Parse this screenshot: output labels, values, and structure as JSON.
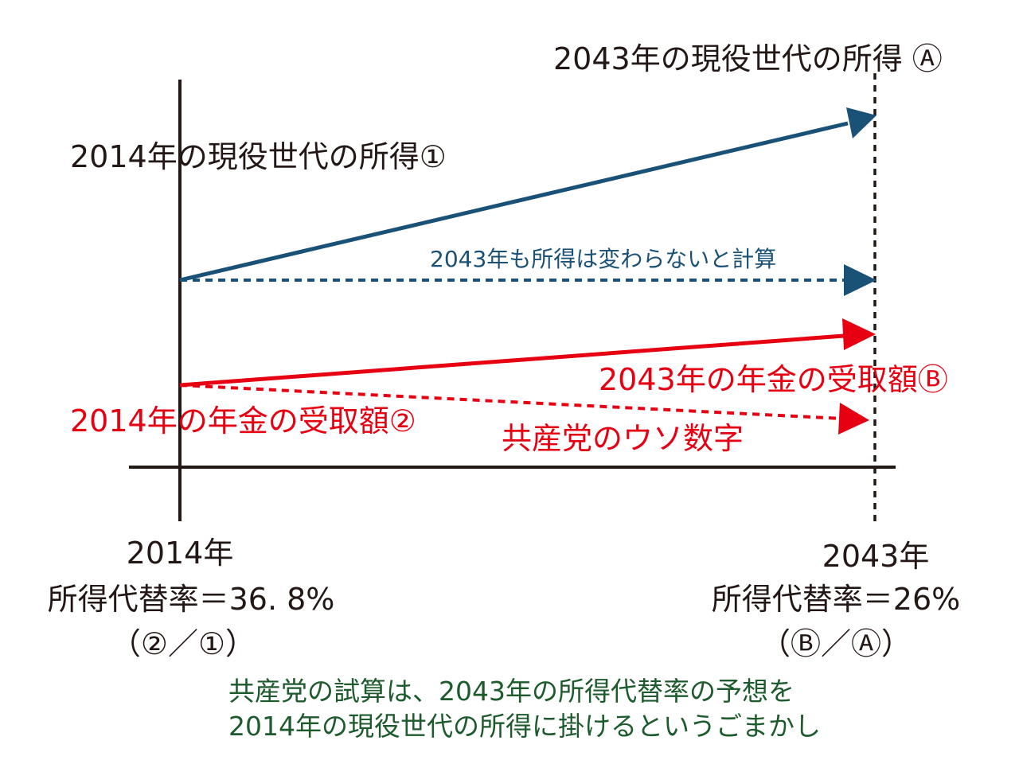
{
  "colors": {
    "axis": "#231815",
    "income": "#1a5177",
    "pension": "#e60012",
    "note": "#1d5a2c"
  },
  "labels": {
    "income_2043": "2043年の現役世代の所得 Ⓐ",
    "income_2014": "2014年の現役世代の所得①",
    "income_flat": "2043年も所得は変わらないと計算",
    "pension_2043": "2043年の年金の受取額Ⓑ",
    "pension_2014": "2014年の年金の受取額②",
    "lie_figure": "共産党のウソ数字"
  },
  "left_axis": {
    "year": "2014年",
    "rate": "所得代替率＝36. 8%",
    "formula": "（②／①）"
  },
  "right_axis": {
    "year": "2043年",
    "rate": "所得代替率＝26%",
    "formula": "（Ⓑ／Ⓐ）"
  },
  "footnote": {
    "line1": "共産党の試算は、2043年の所得代替率の予想を",
    "line2": "2014年の現役世代の所得に掛けるというごまかし"
  }
}
